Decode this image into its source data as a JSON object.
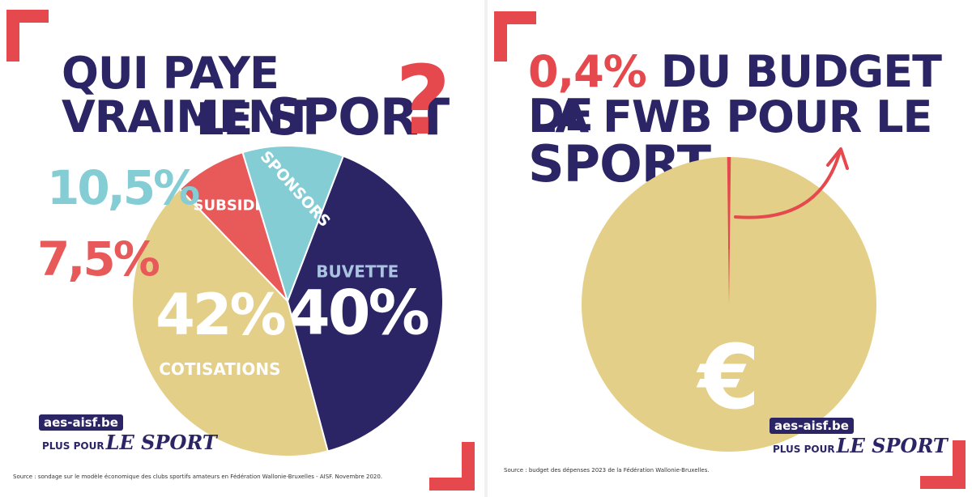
{
  "left": {
    "title_line1": "QUI PAYE VRAIMENT",
    "title_line2_a": "LE ",
    "title_line2_b": "SPORT",
    "question_mark": "?",
    "source": "Source : sondage sur le modèle économique des clubs sportifs amateurs en Fédération Wallonie-Bruxelles - AISF. Novembre 2020.",
    "logo": {
      "site": "aes-aisf.be",
      "plus": "PLUS POUR",
      "sport": "LE SPORT"
    }
  },
  "right": {
    "title_pct": "0,4%",
    "title_line1_rest": " DU BUDGET DE",
    "title_line2_a": "LA FWB POUR LE ",
    "title_line2_b": "SPORT",
    "euro": "€",
    "source": "Source : budget des dépenses 2023 de la Fédération Wallonie-Bruxelles.",
    "logo": {
      "site": "aes-aisf.be",
      "plus": "PLUS POUR",
      "sport": "LE SPORT"
    }
  },
  "chart_data": [
    {
      "type": "pie",
      "title": "QUI PAYE VRAIMENT LE SPORT ?",
      "slices": [
        {
          "label": "BUVETTE",
          "pct_label": "40%",
          "value": 40,
          "color": "#2b2566",
          "text_color": "#ffffff",
          "sub_color": "#a9c3e0"
        },
        {
          "label": "COTISATIONS",
          "pct_label": "42%",
          "value": 42,
          "color": "#e3cf87",
          "text_color": "#ffffff",
          "sub_color": "#ffffff"
        },
        {
          "label": "SUBSIDES",
          "pct_label": "7,5%",
          "value": 7.5,
          "color": "#e85a5a",
          "text_color": "#ffffff",
          "sub_color": "#e85a5a"
        },
        {
          "label": "SPONSORS",
          "pct_label": "10,5%",
          "value": 10.5,
          "color": "#84cdd4",
          "text_color": "#ffffff",
          "sub_color": "#84cdd4"
        }
      ]
    },
    {
      "type": "pie",
      "title": "0,4% DU BUDGET DE LA FWB POUR LE SPORT",
      "slices": [
        {
          "label": "SPORT",
          "value": 0.4,
          "color": "#e5484d"
        },
        {
          "label": "",
          "value": 99.6,
          "color": "#e3cf87"
        }
      ]
    }
  ],
  "colors": {
    "accent": "#e5484d",
    "navy": "#2b2566",
    "gold": "#e3cf87",
    "teal": "#84cdd4"
  }
}
